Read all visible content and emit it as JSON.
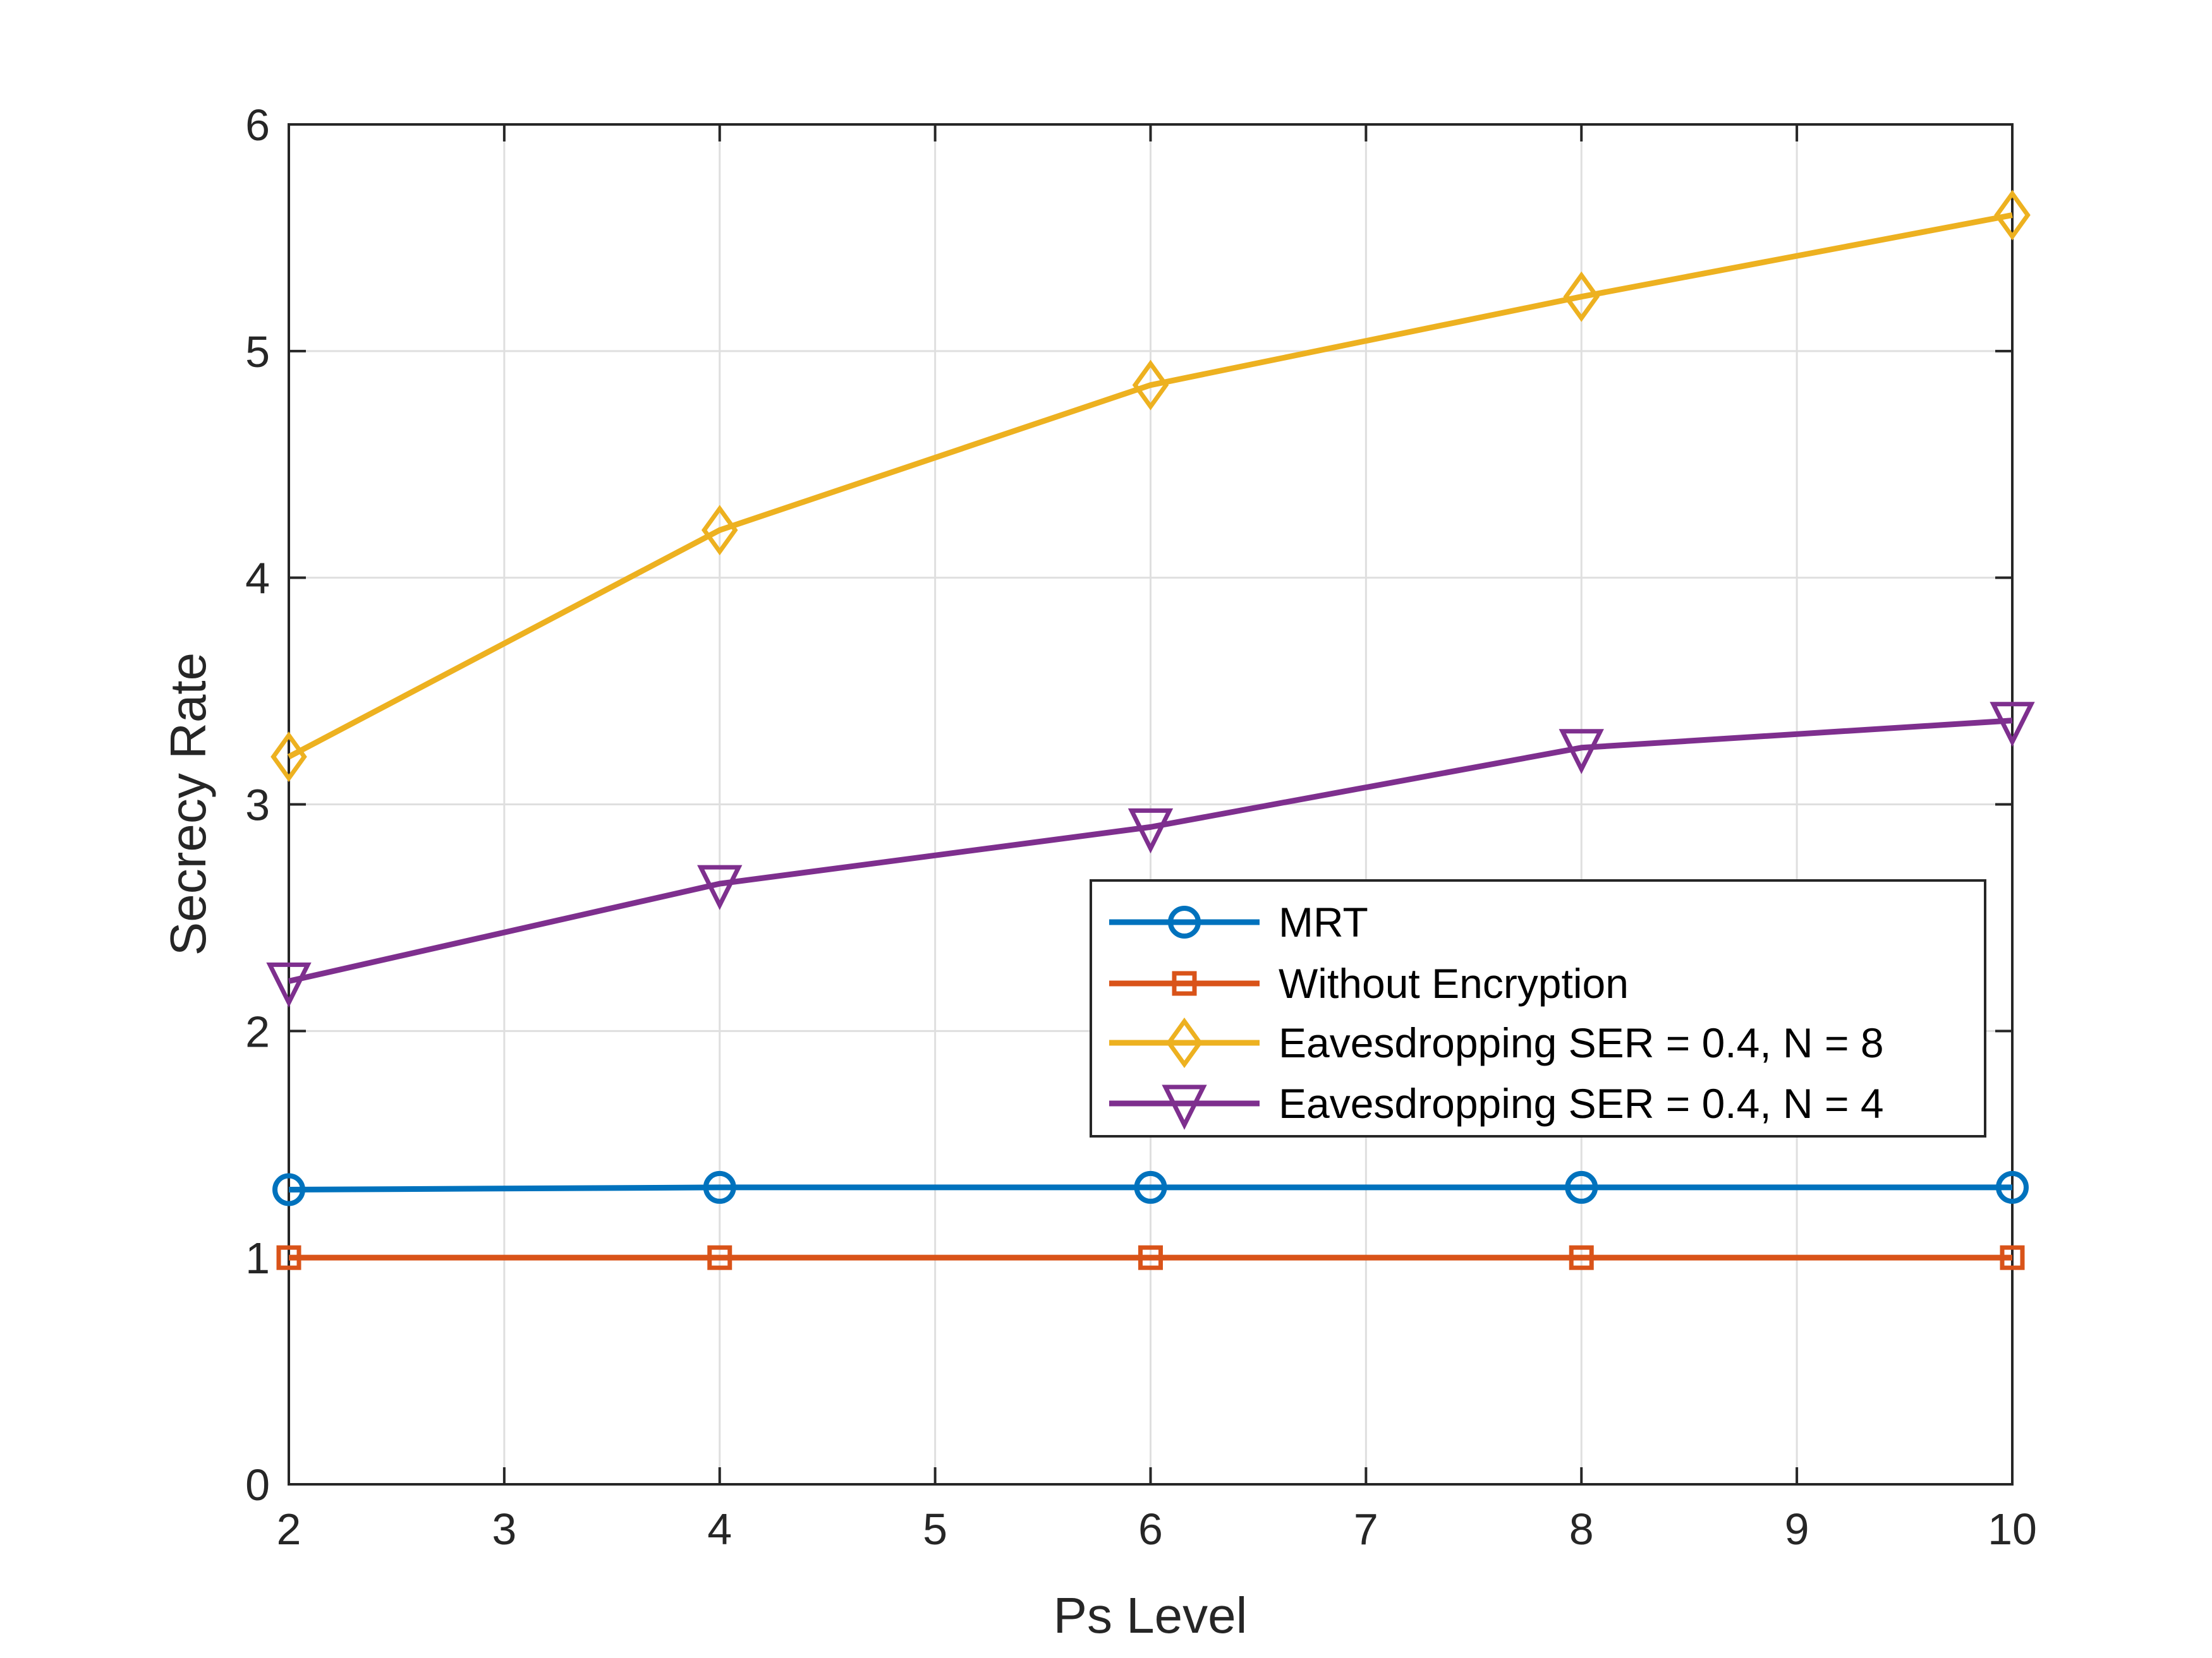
{
  "chart_data": {
    "type": "line",
    "title": "",
    "xlabel": "Ps Level",
    "ylabel": "Secrecy Rate",
    "xlim": [
      2,
      10
    ],
    "ylim": [
      0,
      6
    ],
    "xticks": [
      2,
      3,
      4,
      5,
      6,
      7,
      8,
      9,
      10
    ],
    "yticks": [
      0,
      1,
      2,
      3,
      4,
      5,
      6
    ],
    "grid": true,
    "legend_position": "center-right",
    "x": [
      2,
      4,
      6,
      8,
      10
    ],
    "series": [
      {
        "name": "MRT",
        "color": "#0072BD",
        "marker": "circle",
        "values": [
          1.3,
          1.31,
          1.31,
          1.31,
          1.31
        ]
      },
      {
        "name": "Without Encryption",
        "color": "#D95319",
        "marker": "square",
        "values": [
          1.0,
          1.0,
          1.0,
          1.0,
          1.0
        ]
      },
      {
        "name": "Eavesdropping SER = 0.4, N = 8",
        "color": "#EDB120",
        "marker": "diamond",
        "values": [
          3.21,
          4.21,
          4.85,
          5.24,
          5.6
        ]
      },
      {
        "name": "Eavesdropping SER = 0.4, N = 4",
        "color": "#7E2F8E",
        "marker": "triangle-down",
        "values": [
          2.22,
          2.65,
          2.9,
          3.25,
          3.37
        ]
      }
    ]
  }
}
